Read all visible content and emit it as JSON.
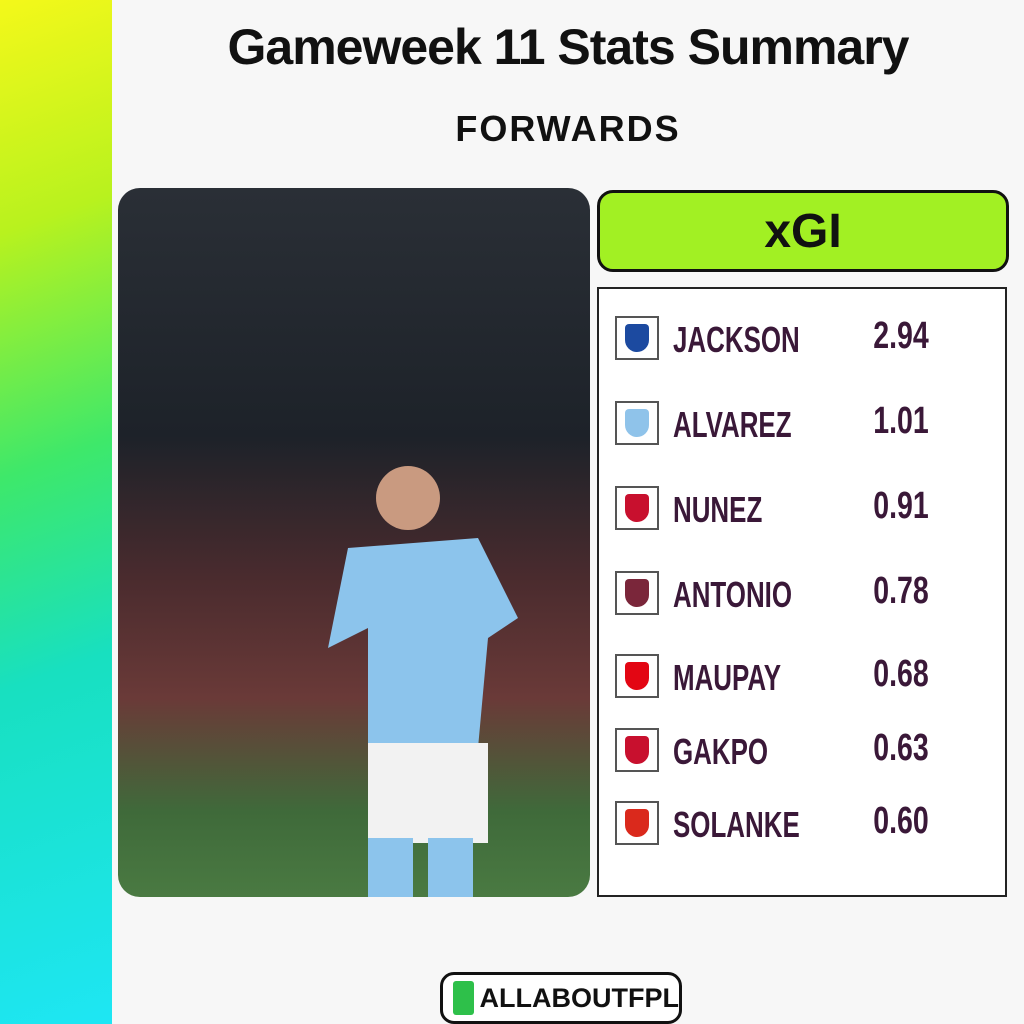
{
  "header": {
    "title": "Gameweek 11 Stats Summary",
    "subtitle": "FORWARDS"
  },
  "stat": {
    "label": "xGI",
    "rows": [
      {
        "name": "JACKSON",
        "value": "2.94"
      },
      {
        "name": "ALVAREZ",
        "value": "1.01"
      },
      {
        "name": "NUNEZ",
        "value": "0.91"
      },
      {
        "name": "ANTONIO",
        "value": "0.78"
      },
      {
        "name": "MAUPAY",
        "value": "0.68"
      },
      {
        "name": "GAKPO",
        "value": "0.63"
      },
      {
        "name": "SOLANKE",
        "value": "0.60"
      }
    ]
  },
  "footer": {
    "brand": "ALLABOUTFPL"
  }
}
